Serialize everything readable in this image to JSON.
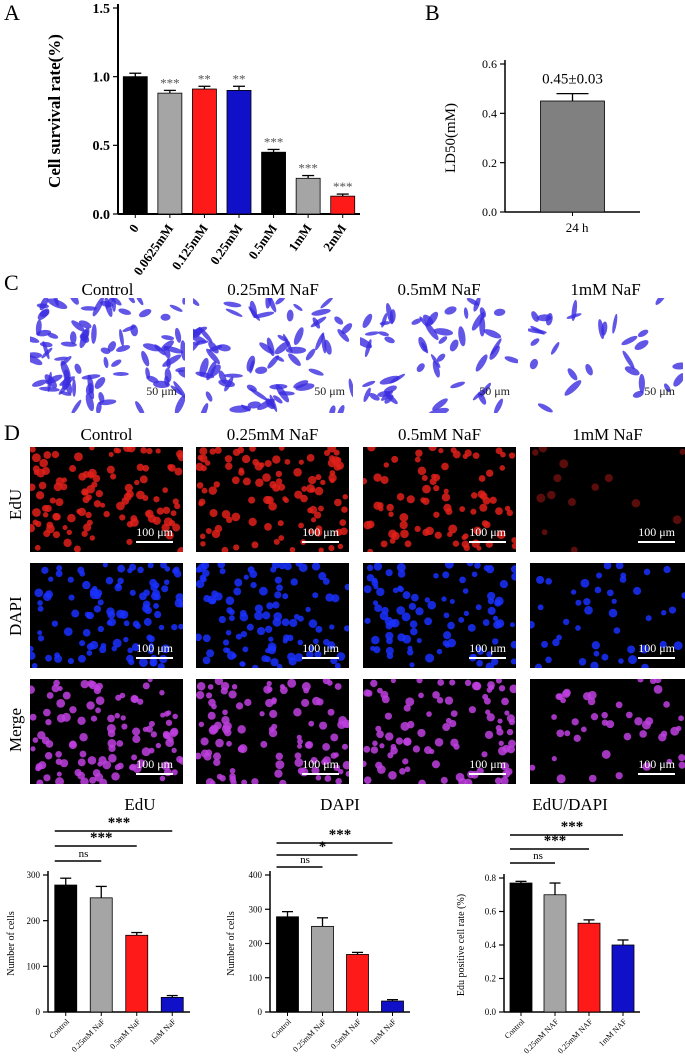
{
  "panels": {
    "A": "A",
    "B": "B",
    "C": "C",
    "D": "D"
  },
  "chart_data": [
    {
      "id": "A",
      "type": "bar",
      "ylabel": "Cell survival rate(%)",
      "categories": [
        "0",
        "0.0625mM",
        "0.125mM",
        "0.25mM",
        "0.5mM",
        "1mM",
        "2mM"
      ],
      "values": [
        1.0,
        0.88,
        0.91,
        0.9,
        0.45,
        0.26,
        0.13
      ],
      "errors": [
        0.025,
        0.02,
        0.02,
        0.03,
        0.02,
        0.02,
        0.015
      ],
      "colors": [
        "#000000",
        "#a5a5a5",
        "#ff1a1a",
        "#1010c8",
        "#000000",
        "#a5a5a5",
        "#ff1a1a"
      ],
      "annotations": [
        "",
        "***",
        "**",
        "**",
        "***",
        "***",
        "***"
      ],
      "yticks": [
        "0.0",
        "0.5",
        "1.0",
        "1.5"
      ],
      "ylim": [
        0,
        1.5
      ]
    },
    {
      "id": "B",
      "type": "bar",
      "ylabel": "LD50(mM)",
      "categories": [
        "24 h"
      ],
      "values": [
        0.45
      ],
      "errors": [
        0.03
      ],
      "colors": [
        "#808080"
      ],
      "annotations": [
        "0.45±0.03"
      ],
      "yticks": [
        "0.0",
        "0.2",
        "0.4",
        "0.6"
      ],
      "ylim": [
        0,
        0.6
      ]
    },
    {
      "id": "EdU",
      "type": "bar",
      "title": "EdU",
      "ylabel": "Number of cells",
      "categories": [
        "Control",
        "0.25mM NaF",
        "0.5mM NaF",
        "1mM NaF"
      ],
      "values": [
        278,
        250,
        168,
        32
      ],
      "errors": [
        15,
        25,
        6,
        4
      ],
      "colors": [
        "#000000",
        "#a5a5a5",
        "#ff1a1a",
        "#1010c8"
      ],
      "yticks": [
        "0",
        "100",
        "200",
        "300"
      ],
      "ylim": [
        0,
        300
      ],
      "sig": [
        {
          "to": 1,
          "label": "ns"
        },
        {
          "to": 2,
          "label": "***"
        },
        {
          "to": 3,
          "label": "***"
        }
      ]
    },
    {
      "id": "DAPI",
      "type": "bar",
      "title": "DAPI",
      "ylabel": "Number of cells",
      "categories": [
        "Control",
        "0.25mM NaF",
        "0.5mM NaF",
        "1mM NaF"
      ],
      "values": [
        278,
        250,
        168,
        32
      ],
      "errors": [
        15,
        25,
        6,
        4
      ],
      "colors": [
        "#000000",
        "#a5a5a5",
        "#ff1a1a",
        "#1010c8"
      ],
      "yticks": [
        "0",
        "100",
        "200",
        "300",
        "400"
      ],
      "ylim": [
        0,
        400
      ],
      "sig": [
        {
          "to": 1,
          "label": "ns"
        },
        {
          "to": 2,
          "label": "*"
        },
        {
          "to": 3,
          "label": "***"
        }
      ]
    },
    {
      "id": "ratio",
      "type": "bar",
      "title": "EdU/DAPI",
      "ylabel": "Edu positive cell rate (%)",
      "categories": [
        "Control",
        "0.25mM NAF",
        "0.25mM NAF",
        "1mM NAF"
      ],
      "values": [
        0.77,
        0.7,
        0.53,
        0.4
      ],
      "errors": [
        0.01,
        0.07,
        0.02,
        0.03
      ],
      "colors": [
        "#000000",
        "#a5a5a5",
        "#ff1a1a",
        "#1010c8"
      ],
      "yticks": [
        "0.0",
        "0.2",
        "0.4",
        "0.6",
        "0.8"
      ],
      "ylim": [
        0,
        0.8
      ],
      "sig": [
        {
          "to": 1,
          "label": "ns"
        },
        {
          "to": 2,
          "label": "***"
        },
        {
          "to": 3,
          "label": "***"
        }
      ]
    }
  ],
  "columns": [
    "Control",
    "0.25mM NaF",
    "0.5mM NaF",
    "1mM NaF"
  ],
  "rows": [
    "EdU",
    "DAPI",
    "Merge"
  ],
  "scale_c": "50 μm",
  "scale_d": "100 μm",
  "colors": {
    "crystal_violet": "#3a2ce0",
    "edu": "#e0201a",
    "dapi": "#1a30ff",
    "merge": "#c040e0"
  }
}
